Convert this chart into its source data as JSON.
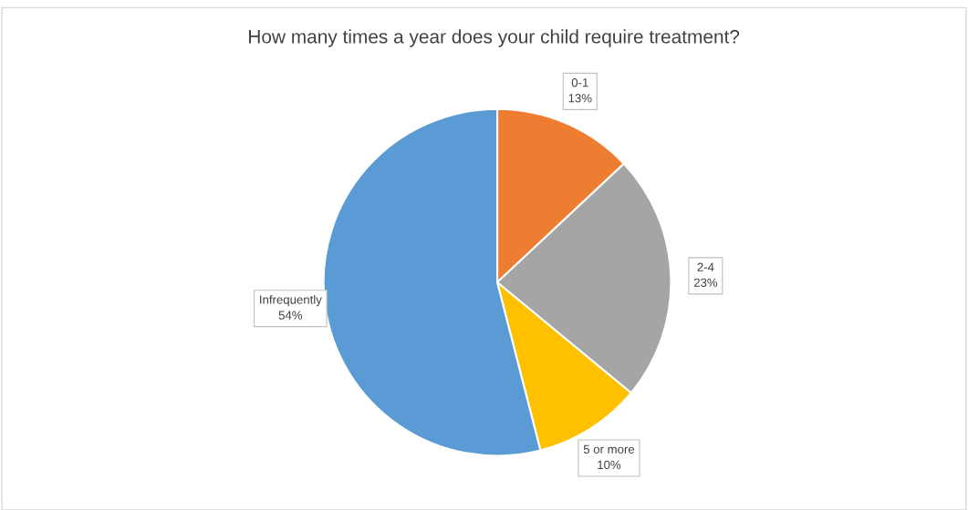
{
  "chart_data": {
    "type": "pie",
    "title": "How many times a year does your child require treatment?",
    "categories": [
      "0-1",
      "2-4",
      "5 or more",
      "Infrequently"
    ],
    "values": [
      13,
      23,
      10,
      54
    ],
    "value_labels": [
      "13%",
      "23%",
      "10%",
      "54%"
    ],
    "colors": [
      "#ed7d31",
      "#a5a5a5",
      "#ffc000",
      "#5b9bd5"
    ],
    "legend": false
  }
}
